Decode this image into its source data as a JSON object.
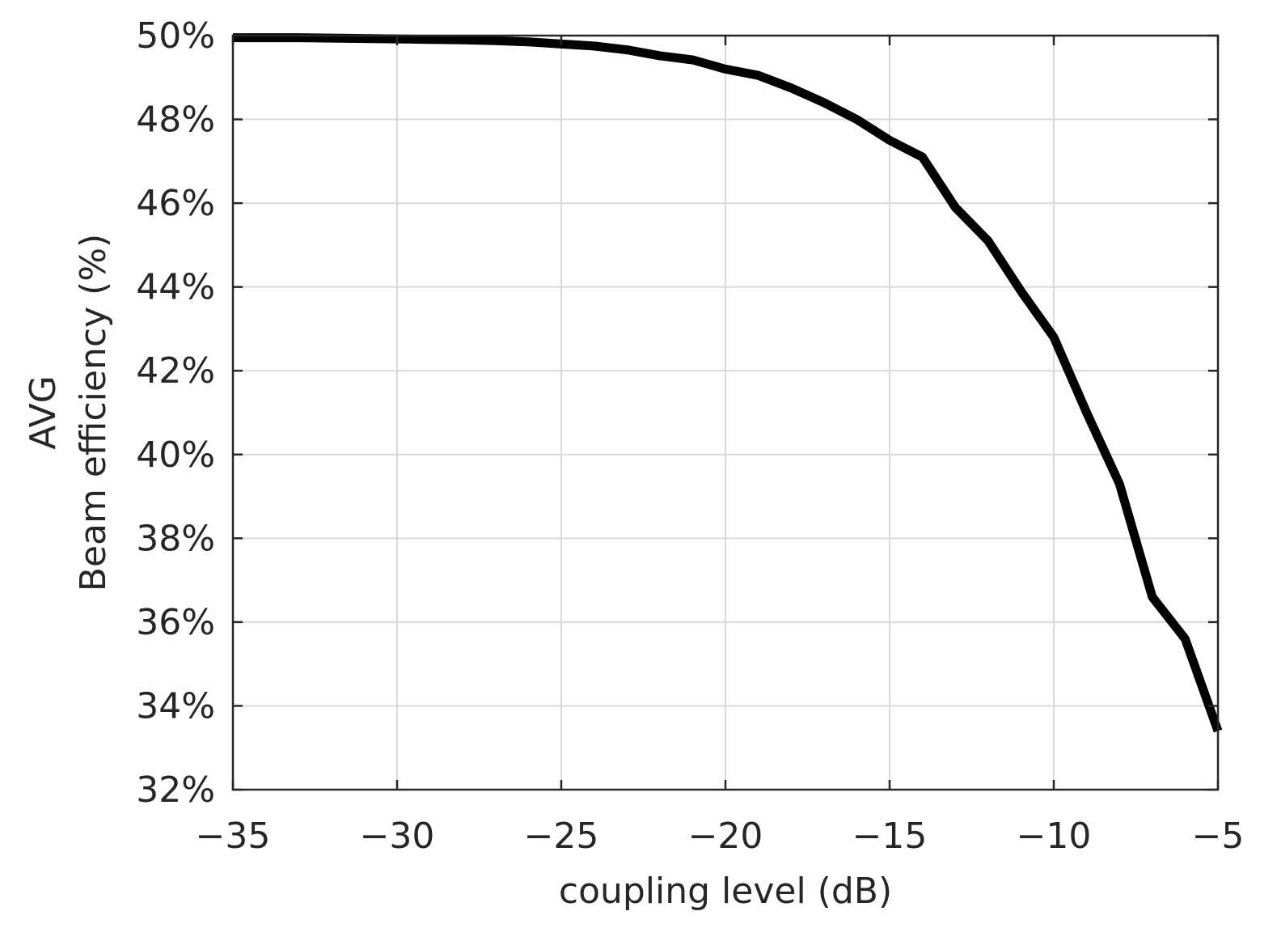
{
  "chart_data": {
    "type": "line",
    "title": "",
    "xlabel": "coupling level (dB)",
    "ylabel_lines": [
      "AVG",
      "Beam efficiency (%)"
    ],
    "xlim": [
      -35,
      -5
    ],
    "ylim": [
      32,
      50
    ],
    "x_ticks": [
      -35,
      -30,
      -25,
      -20,
      -15,
      -10,
      -5
    ],
    "x_tick_labels": [
      "−35",
      "−30",
      "−25",
      "−20",
      "−15",
      "−10",
      "−5"
    ],
    "y_ticks": [
      32,
      34,
      36,
      38,
      40,
      42,
      44,
      46,
      48,
      50
    ],
    "y_tick_labels": [
      "32%",
      "34%",
      "36%",
      "38%",
      "40%",
      "42%",
      "44%",
      "46%",
      "48%",
      "50%"
    ],
    "grid": true,
    "series": [
      {
        "color": "#000000",
        "x": [
          -35,
          -34,
          -33,
          -32,
          -31,
          -30,
          -29,
          -28,
          -27,
          -26,
          -25,
          -24,
          -23,
          -22,
          -21,
          -20,
          -19,
          -18,
          -17,
          -16,
          -15,
          -14,
          -13,
          -12,
          -11,
          -10,
          -9,
          -8,
          -7,
          -6,
          -5
        ],
        "y": [
          49.95,
          49.95,
          49.95,
          49.94,
          49.93,
          49.92,
          49.91,
          49.9,
          49.88,
          49.85,
          49.8,
          49.75,
          49.66,
          49.52,
          49.42,
          49.2,
          49.05,
          48.75,
          48.4,
          48.0,
          47.5,
          47.1,
          45.9,
          45.1,
          43.9,
          42.8,
          41.0,
          39.3,
          36.6,
          35.6,
          33.4
        ]
      }
    ]
  }
}
